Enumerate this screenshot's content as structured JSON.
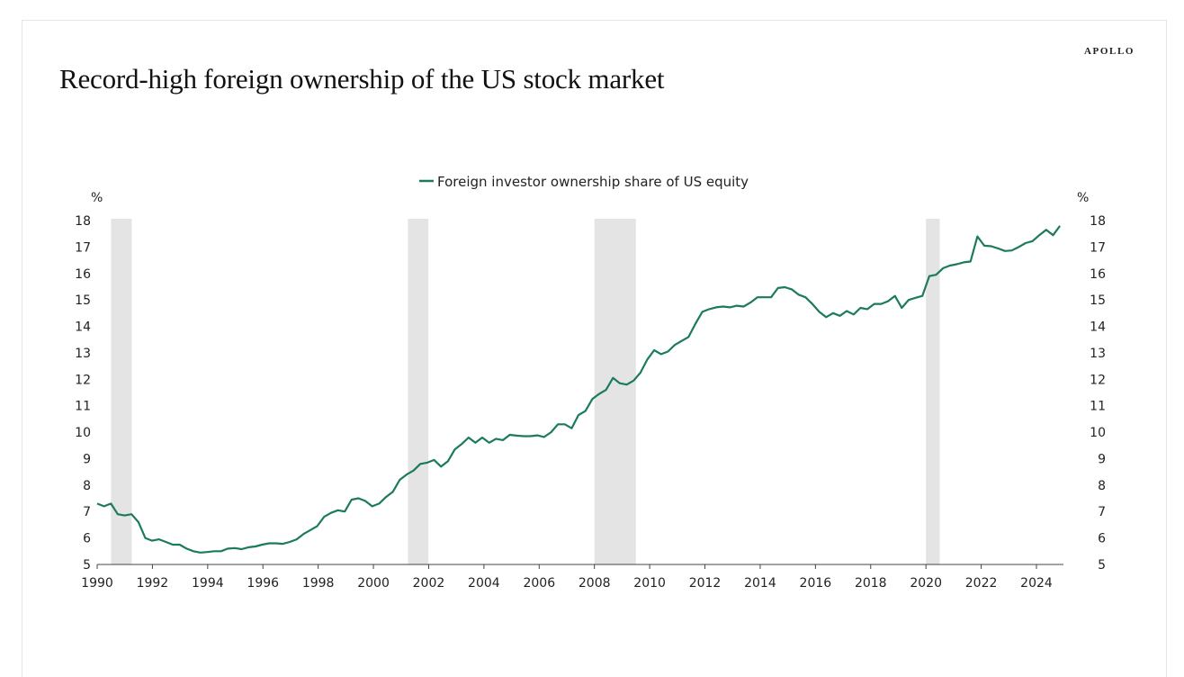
{
  "brand": "APOLLO",
  "title": "Record-high foreign ownership of the US stock market",
  "colors": {
    "line": "#1b7a5f",
    "recession": "#e3e4e3"
  },
  "chart_data": {
    "type": "line",
    "title": "Record-high foreign ownership of the US stock market",
    "ylabel_left": "%",
    "ylabel_right": "%",
    "xlabel": "",
    "ylim": [
      5,
      18
    ],
    "xlim": [
      1990,
      2025
    ],
    "x_ticks": [
      "1990",
      "1992",
      "1994",
      "1996",
      "1998",
      "2000",
      "2002",
      "2004",
      "2006",
      "2008",
      "2010",
      "2012",
      "2014",
      "2016",
      "2018",
      "2020",
      "2022",
      "2024"
    ],
    "y_ticks": [
      "5",
      "6",
      "7",
      "8",
      "9",
      "10",
      "11",
      "12",
      "13",
      "14",
      "15",
      "16",
      "17",
      "18"
    ],
    "legend": {
      "position": "top-center",
      "entries": [
        "Foreign investor ownership share of US equity"
      ]
    },
    "recessions": [
      [
        1990.5,
        1991.25
      ],
      [
        2001.25,
        2001.99
      ],
      [
        2008.0,
        2009.5
      ],
      [
        2020.0,
        2020.5
      ]
    ],
    "series": [
      {
        "name": "Foreign investor ownership share of US equity",
        "x_start": 1990.0,
        "x_end": 2024.85,
        "values": [
          7.3,
          7.2,
          7.3,
          6.9,
          6.85,
          6.9,
          6.6,
          6.0,
          5.9,
          5.95,
          5.85,
          5.75,
          5.75,
          5.6,
          5.5,
          5.45,
          5.47,
          5.5,
          5.5,
          5.6,
          5.62,
          5.58,
          5.65,
          5.68,
          5.75,
          5.8,
          5.8,
          5.78,
          5.85,
          5.95,
          6.15,
          6.3,
          6.45,
          6.8,
          6.95,
          7.05,
          7.0,
          7.45,
          7.5,
          7.4,
          7.2,
          7.3,
          7.55,
          7.75,
          8.2,
          8.4,
          8.55,
          8.8,
          8.85,
          8.95,
          8.7,
          8.9,
          9.35,
          9.55,
          9.8,
          9.6,
          9.8,
          9.6,
          9.75,
          9.7,
          9.9,
          9.87,
          9.85,
          9.85,
          9.88,
          9.82,
          10.0,
          10.3,
          10.3,
          10.15,
          10.65,
          10.8,
          11.25,
          11.45,
          11.6,
          12.05,
          11.85,
          11.8,
          11.95,
          12.25,
          12.75,
          13.1,
          12.95,
          13.05,
          13.3,
          13.45,
          13.6,
          14.1,
          14.55,
          14.65,
          14.72,
          14.75,
          14.72,
          14.78,
          14.75,
          14.9,
          15.1,
          15.1,
          15.1,
          15.45,
          15.48,
          15.4,
          15.2,
          15.1,
          14.85,
          14.55,
          14.35,
          14.5,
          14.4,
          14.58,
          14.45,
          14.7,
          14.65,
          14.85,
          14.85,
          14.95,
          15.15,
          14.7,
          15.0,
          15.08,
          15.15,
          15.9,
          15.95,
          16.2,
          16.3,
          16.35,
          16.42,
          16.45,
          17.4,
          17.05,
          17.03,
          16.95,
          16.85,
          16.87,
          17.0,
          17.15,
          17.22,
          17.45,
          17.65,
          17.45,
          17.8
        ]
      }
    ]
  }
}
